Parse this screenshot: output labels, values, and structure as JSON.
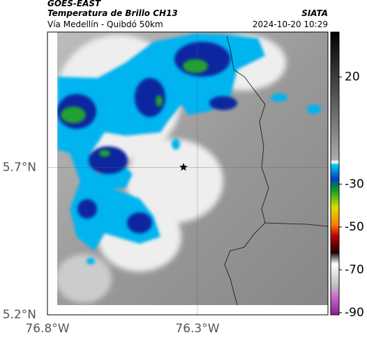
{
  "header": {
    "title": "GOES-EAST",
    "subtitle": "Temperatura de Brillo CH13",
    "route": "Vía Medellín - Quibdó 50km",
    "source": "SIATA",
    "timestamp": "2024-10-20 10:29"
  },
  "map": {
    "xlim": [
      -76.8,
      -75.865
    ],
    "ylim": [
      5.2,
      6.16
    ],
    "xticks": [
      {
        "value": -76.8,
        "label": "76.8°W"
      },
      {
        "value": -76.3,
        "label": "76.3°W"
      }
    ],
    "yticks": [
      {
        "value": 5.2,
        "label": "5.2°N"
      },
      {
        "value": 5.7,
        "label": "5.7°N"
      }
    ]
  },
  "colorbar": {
    "lim": [
      41,
      -91
    ],
    "ticks": [
      20,
      -30,
      -50,
      -70,
      -90
    ]
  }
}
